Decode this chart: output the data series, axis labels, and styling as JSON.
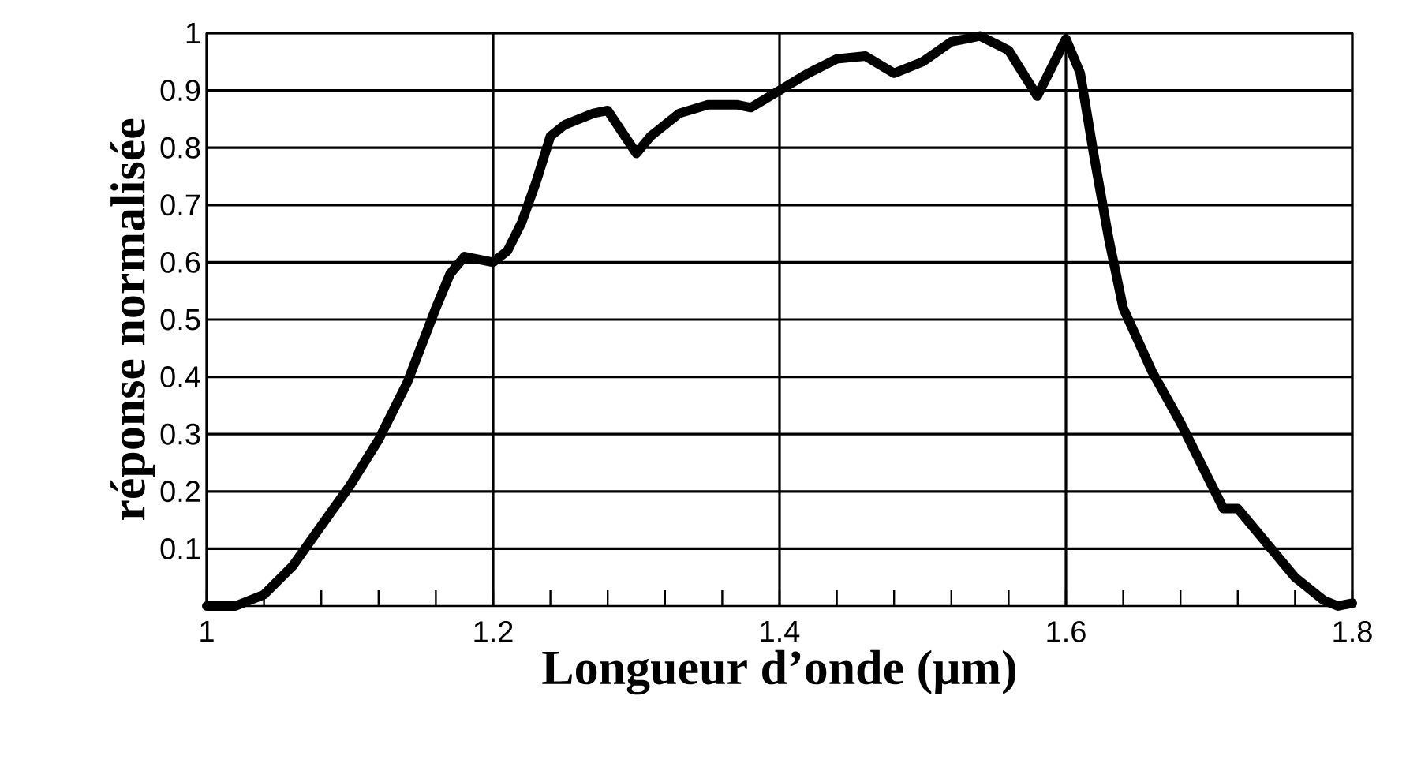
{
  "chart_data": {
    "type": "line",
    "xlabel": "Longueur d’onde (μm)",
    "ylabel": "réponse normalisée",
    "x": [
      1.0,
      1.01,
      1.02,
      1.04,
      1.06,
      1.08,
      1.1,
      1.12,
      1.14,
      1.16,
      1.17,
      1.18,
      1.2,
      1.21,
      1.22,
      1.23,
      1.24,
      1.25,
      1.27,
      1.28,
      1.3,
      1.31,
      1.33,
      1.35,
      1.37,
      1.38,
      1.4,
      1.42,
      1.44,
      1.46,
      1.48,
      1.5,
      1.52,
      1.54,
      1.56,
      1.58,
      1.59,
      1.6,
      1.61,
      1.62,
      1.63,
      1.64,
      1.66,
      1.68,
      1.7,
      1.71,
      1.72,
      1.74,
      1.76,
      1.78,
      1.79,
      1.8
    ],
    "series": [
      {
        "color": "#000000",
        "values": [
          0.0,
          0.0,
          0.0,
          0.02,
          0.07,
          0.14,
          0.21,
          0.29,
          0.39,
          0.52,
          0.58,
          0.61,
          0.6,
          0.62,
          0.67,
          0.74,
          0.82,
          0.84,
          0.86,
          0.865,
          0.79,
          0.82,
          0.86,
          0.875,
          0.875,
          0.87,
          0.9,
          0.93,
          0.955,
          0.96,
          0.93,
          0.95,
          0.985,
          0.995,
          0.97,
          0.89,
          0.94,
          0.99,
          0.93,
          0.78,
          0.64,
          0.52,
          0.41,
          0.32,
          0.22,
          0.17,
          0.17,
          0.11,
          0.05,
          0.01,
          0.0,
          0.005
        ]
      }
    ],
    "xlim": [
      1.0,
      1.8
    ],
    "ylim": [
      0,
      1
    ],
    "xticks": [
      1,
      1.2,
      1.4,
      1.6,
      1.8
    ],
    "yticks": [
      0.1,
      0.2,
      0.3,
      0.4,
      0.5,
      0.6,
      0.7,
      0.8,
      0.9,
      1
    ],
    "grid": true,
    "marker": "none",
    "line_style": "solid"
  }
}
